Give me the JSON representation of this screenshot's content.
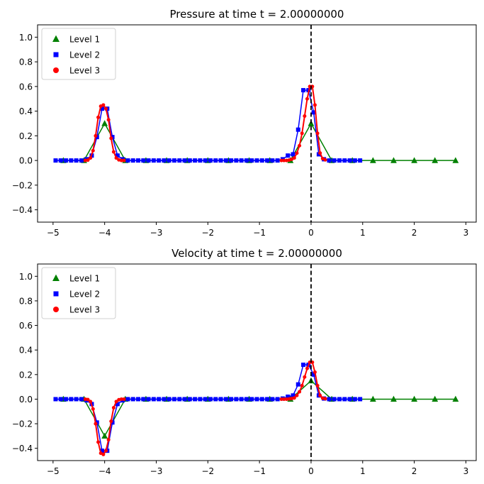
{
  "chart_data": [
    {
      "type": "line",
      "title": "Pressure at time t =      2.00000000",
      "xlim": [
        -5.3,
        3.2
      ],
      "ylim": [
        -0.5,
        1.1
      ],
      "xticks": [
        -5,
        -4,
        -3,
        -2,
        -1,
        0,
        1,
        2,
        3
      ],
      "xtick_labels": [
        "−5",
        "−4",
        "−3",
        "−2",
        "−1",
        "0",
        "1",
        "2",
        "3"
      ],
      "yticks": [
        -0.4,
        -0.2,
        0.0,
        0.2,
        0.4,
        0.6,
        0.8,
        1.0
      ],
      "ytick_labels": [
        "−0.4",
        "−0.2",
        "0.0",
        "0.2",
        "0.4",
        "0.6",
        "0.8",
        "1.0"
      ],
      "vline_x": 0,
      "legend": {
        "position": "top-left",
        "entries": [
          "Level 1",
          "Level 2",
          "Level 3"
        ]
      },
      "series": [
        {
          "name": "Level 1",
          "color": "#008000",
          "marker": "triangle",
          "x": [
            -4.8,
            -4.4,
            -4.0,
            -3.6,
            -3.2,
            -2.8,
            -2.4,
            -2.0,
            -1.6,
            -1.2,
            -0.8,
            -0.4,
            0.0,
            0.4,
            0.8,
            1.2,
            1.6,
            2.0,
            2.4,
            2.8
          ],
          "y": [
            0,
            0,
            0.3,
            0,
            0,
            0,
            0,
            0,
            0,
            0,
            0,
            0,
            0.3,
            0,
            0,
            0,
            0,
            0,
            0,
            0
          ]
        },
        {
          "name": "Level 2",
          "color": "#0000ff",
          "marker": "square",
          "x": [
            -4.95,
            -4.85,
            -4.75,
            -4.65,
            -4.55,
            -4.45,
            -4.35,
            -4.25,
            -4.15,
            -4.05,
            -3.95,
            -3.85,
            -3.75,
            -3.65,
            -3.55,
            -3.45,
            -3.35,
            -3.25,
            -3.15,
            -3.05,
            -2.95,
            -2.85,
            -2.75,
            -2.65,
            -2.55,
            -2.45,
            -2.35,
            -2.25,
            -2.15,
            -2.05,
            -1.95,
            -1.85,
            -1.75,
            -1.65,
            -1.55,
            -1.45,
            -1.35,
            -1.25,
            -1.15,
            -1.05,
            -0.95,
            -0.85,
            -0.75,
            -0.65,
            -0.55,
            -0.45,
            -0.35,
            -0.25,
            -0.15,
            -0.05,
            0.05,
            0.15,
            0.25,
            0.35,
            0.45,
            0.55,
            0.65,
            0.75,
            0.85,
            0.95
          ],
          "y": [
            0,
            0,
            0,
            0,
            0,
            0,
            0.01,
            0.04,
            0.19,
            0.42,
            0.42,
            0.19,
            0.04,
            0.01,
            0,
            0,
            0,
            0,
            0,
            0,
            0,
            0,
            0,
            0,
            0,
            0,
            0,
            0,
            0,
            0,
            0,
            0,
            0,
            0,
            0,
            0,
            0,
            0,
            0,
            0,
            0,
            0,
            0,
            0,
            0.01,
            0.04,
            0.05,
            0.25,
            0.57,
            0.57,
            0.39,
            0.05,
            0.01,
            0,
            0,
            0,
            0,
            0,
            0,
            0
          ]
        },
        {
          "name": "Level 3",
          "color": "#ff0000",
          "marker": "circle",
          "x": [
            -4.375,
            -4.325,
            -4.275,
            -4.225,
            -4.175,
            -4.125,
            -4.075,
            -4.025,
            -3.975,
            -3.925,
            -3.875,
            -3.825,
            -3.775,
            -3.725,
            -3.675,
            -3.625,
            -0.575,
            -0.525,
            -0.475,
            -0.425,
            -0.375,
            -0.325,
            -0.275,
            -0.225,
            -0.175,
            -0.125,
            -0.075,
            -0.025,
            0.025,
            0.075,
            0.125,
            0.175,
            0.225,
            0.275
          ],
          "y": [
            0,
            0.003,
            0.02,
            0.08,
            0.2,
            0.35,
            0.44,
            0.45,
            0.42,
            0.33,
            0.18,
            0.07,
            0.02,
            0.005,
            0,
            0,
            0,
            0,
            0,
            0.003,
            0.01,
            0.02,
            0.06,
            0.12,
            0.22,
            0.36,
            0.5,
            0.6,
            0.6,
            0.45,
            0.22,
            0.06,
            0.015,
            0.005
          ]
        }
      ]
    },
    {
      "type": "line",
      "title": "Velocity at time t =      2.00000000",
      "xlim": [
        -5.3,
        3.2
      ],
      "ylim": [
        -0.5,
        1.1
      ],
      "xticks": [
        -5,
        -4,
        -3,
        -2,
        -1,
        0,
        1,
        2,
        3
      ],
      "xtick_labels": [
        "−5",
        "−4",
        "−3",
        "−2",
        "−1",
        "0",
        "1",
        "2",
        "3"
      ],
      "yticks": [
        -0.4,
        -0.2,
        0.0,
        0.2,
        0.4,
        0.6,
        0.8,
        1.0
      ],
      "ytick_labels": [
        "−0.4",
        "−0.2",
        "0.0",
        "0.2",
        "0.4",
        "0.6",
        "0.8",
        "1.0"
      ],
      "vline_x": 0,
      "legend": {
        "position": "top-left",
        "entries": [
          "Level 1",
          "Level 2",
          "Level 3"
        ]
      },
      "series": [
        {
          "name": "Level 1",
          "color": "#008000",
          "marker": "triangle",
          "x": [
            -4.8,
            -4.4,
            -4.0,
            -3.6,
            -3.2,
            -2.8,
            -2.4,
            -2.0,
            -1.6,
            -1.2,
            -0.8,
            -0.4,
            0.0,
            0.4,
            0.8,
            1.2,
            1.6,
            2.0,
            2.4,
            2.8
          ],
          "y": [
            0,
            0,
            -0.3,
            0,
            0,
            0,
            0,
            0,
            0,
            0,
            0,
            0,
            0.15,
            0,
            0,
            0,
            0,
            0,
            0,
            0
          ]
        },
        {
          "name": "Level 2",
          "color": "#0000ff",
          "marker": "square",
          "x": [
            -4.95,
            -4.85,
            -4.75,
            -4.65,
            -4.55,
            -4.45,
            -4.35,
            -4.25,
            -4.15,
            -4.05,
            -3.95,
            -3.85,
            -3.75,
            -3.65,
            -3.55,
            -3.45,
            -3.35,
            -3.25,
            -3.15,
            -3.05,
            -2.95,
            -2.85,
            -2.75,
            -2.65,
            -2.55,
            -2.45,
            -2.35,
            -2.25,
            -2.15,
            -2.05,
            -1.95,
            -1.85,
            -1.75,
            -1.65,
            -1.55,
            -1.45,
            -1.35,
            -1.25,
            -1.15,
            -1.05,
            -0.95,
            -0.85,
            -0.75,
            -0.65,
            -0.55,
            -0.45,
            -0.35,
            -0.25,
            -0.15,
            -0.05,
            0.05,
            0.15,
            0.25,
            0.35,
            0.45,
            0.55,
            0.65,
            0.75,
            0.85,
            0.95
          ],
          "y": [
            0,
            0,
            0,
            0,
            0,
            0,
            -0.01,
            -0.04,
            -0.19,
            -0.42,
            -0.42,
            -0.19,
            -0.04,
            -0.01,
            0,
            0,
            0,
            0,
            0,
            0,
            0,
            0,
            0,
            0,
            0,
            0,
            0,
            0,
            0,
            0,
            0,
            0,
            0,
            0,
            0,
            0,
            0,
            0,
            0,
            0,
            0,
            0,
            0,
            0,
            0.005,
            0.02,
            0.03,
            0.12,
            0.28,
            0.28,
            0.2,
            0.03,
            0.005,
            0,
            0,
            0,
            0,
            0,
            0,
            0
          ]
        },
        {
          "name": "Level 3",
          "color": "#ff0000",
          "marker": "circle",
          "x": [
            -4.375,
            -4.325,
            -4.275,
            -4.225,
            -4.175,
            -4.125,
            -4.075,
            -4.025,
            -3.975,
            -3.925,
            -3.875,
            -3.825,
            -3.775,
            -3.725,
            -3.675,
            -3.625,
            -0.575,
            -0.525,
            -0.475,
            -0.425,
            -0.375,
            -0.325,
            -0.275,
            -0.225,
            -0.175,
            -0.125,
            -0.075,
            -0.025,
            0.025,
            0.075,
            0.125,
            0.175,
            0.225,
            0.275
          ],
          "y": [
            0,
            -0.003,
            -0.02,
            -0.08,
            -0.2,
            -0.35,
            -0.44,
            -0.45,
            -0.42,
            -0.33,
            -0.18,
            -0.07,
            -0.02,
            -0.005,
            0,
            0,
            0,
            0,
            0,
            0.002,
            0.005,
            0.01,
            0.03,
            0.06,
            0.11,
            0.18,
            0.25,
            0.3,
            0.3,
            0.22,
            0.11,
            0.03,
            0.008,
            0.003
          ]
        }
      ]
    }
  ]
}
